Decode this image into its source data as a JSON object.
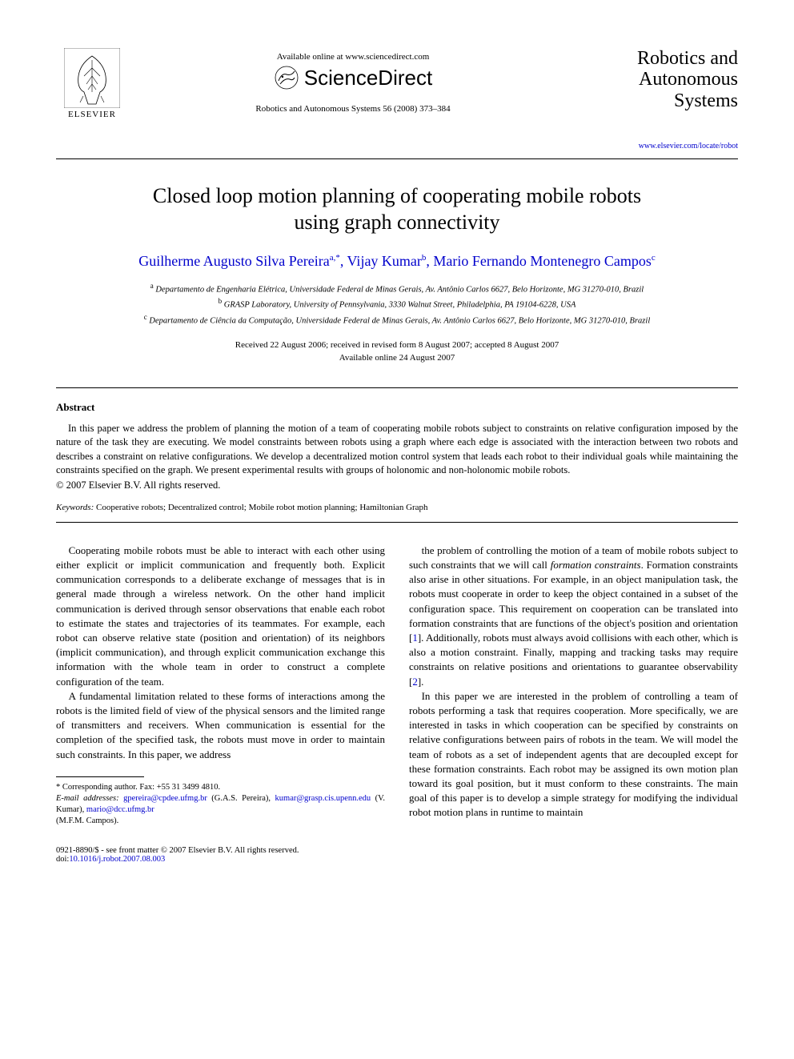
{
  "header": {
    "elsevier_label": "ELSEVIER",
    "available_online": "Available online at www.sciencedirect.com",
    "sciencedirect": "ScienceDirect",
    "citation": "Robotics and Autonomous Systems 56 (2008) 373–384",
    "journal_title_line1": "Robotics and",
    "journal_title_line2": "Autonomous",
    "journal_title_line3": "Systems",
    "journal_link": "www.elsevier.com/locate/robot"
  },
  "article": {
    "title_line1": "Closed loop motion planning of cooperating mobile robots",
    "title_line2": "using graph connectivity",
    "authors_html": "Guilherme Augusto Silva Pereira<sup>a,*</sup>, Vijay Kumar<sup>b</sup>, Mario Fernando Montenegro Campos<sup>c</sup>",
    "affiliations": {
      "a": "Departamento de Engenharia Elétrica, Universidade Federal de Minas Gerais, Av. Antônio Carlos 6627, Belo Horizonte, MG 31270-010, Brazil",
      "b": "GRASP Laboratory, University of Pennsylvania, 3330 Walnut Street, Philadelphia, PA 19104-6228, USA",
      "c": "Departamento de Ciência da Computação, Universidade Federal de Minas Gerais, Av. Antônio Carlos 6627, Belo Horizonte, MG 31270-010, Brazil"
    },
    "dates_line1": "Received 22 August 2006; received in revised form 8 August 2007; accepted 8 August 2007",
    "dates_line2": "Available online 24 August 2007"
  },
  "abstract": {
    "heading": "Abstract",
    "body": "In this paper we address the problem of planning the motion of a team of cooperating mobile robots subject to constraints on relative configuration imposed by the nature of the task they are executing. We model constraints between robots using a graph where each edge is associated with the interaction between two robots and describes a constraint on relative configurations. We develop a decentralized motion control system that leads each robot to their individual goals while maintaining the constraints specified on the graph. We present experimental results with groups of holonomic and non-holonomic mobile robots.",
    "copyright": "© 2007 Elsevier B.V. All rights reserved."
  },
  "keywords": {
    "label": "Keywords:",
    "text": " Cooperative robots; Decentralized control; Mobile robot motion planning; Hamiltonian Graph"
  },
  "body": {
    "left": {
      "p1": "Cooperating mobile robots must be able to interact with each other using either explicit or implicit communication and frequently both. Explicit communication corresponds to a deliberate exchange of messages that is in general made through a wireless network. On the other hand implicit communication is derived through sensor observations that enable each robot to estimate the states and trajectories of its teammates. For example, each robot can observe relative state (position and orientation) of its neighbors (implicit communication), and through explicit communication exchange this information with the whole team in order to construct a complete configuration of the team.",
      "p2": "A fundamental limitation related to these forms of interactions among the robots is the limited field of view of the physical sensors and the limited range of transmitters and receivers. When communication is essential for the completion of the specified task, the robots must move in order to maintain such constraints. In this paper, we address"
    },
    "right": {
      "p1_pre": "the problem of controlling the motion of a team of mobile robots subject to such constraints that we will call ",
      "p1_em": "formation constraints",
      "p1_post": ". Formation constraints also arise in other situations. For example, in an object manipulation task, the robots must cooperate in order to keep the object contained in a subset of the configuration space. This requirement on cooperation can be translated into formation constraints that are functions of the object's position and orientation [",
      "ref1": "1",
      "p1_post2": "]. Additionally, robots must always avoid collisions with each other, which is also a motion constraint. Finally, mapping and tracking tasks may require constraints on relative positions and orientations to guarantee observability [",
      "ref2": "2",
      "p1_post3": "].",
      "p2": "In this paper we are interested in the problem of controlling a team of robots performing a task that requires cooperation. More specifically, we are interested in tasks in which cooperation can be specified by constraints on relative configurations between pairs of robots in the team. We will model the team of robots as a set of independent agents that are decoupled except for these formation constraints. Each robot may be assigned its own motion plan toward its goal position, but it must conform to these constraints. The main goal of this paper is to develop a simple strategy for modifying the individual robot motion plans in runtime to maintain"
    }
  },
  "footnotes": {
    "corresponding": "* Corresponding author. Fax: +55 31 3499 4810.",
    "email_label": "E-mail addresses:",
    "email1": "gpereira@cpdee.ufmg.br",
    "name1": " (G.A.S. Pereira), ",
    "email2": "kumar@grasp.cis.upenn.edu",
    "name2": " (V. Kumar), ",
    "email3": "mario@dcc.ufmg.br",
    "name3_line": "(M.F.M. Campos)."
  },
  "footer": {
    "issn_line": "0921-8890/$ - see front matter © 2007 Elsevier B.V. All rights reserved.",
    "doi_label": "doi:",
    "doi": "10.1016/j.robot.2007.08.003"
  },
  "colors": {
    "link": "#0000cc",
    "text": "#000000",
    "background": "#ffffff"
  }
}
